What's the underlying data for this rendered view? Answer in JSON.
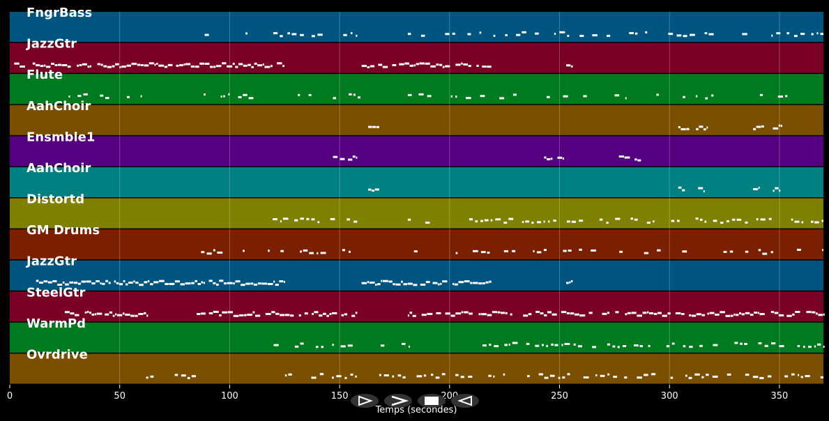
{
  "chart_data": {
    "type": "piano-roll",
    "xlabel": "Temps (secondes)",
    "xlim": [
      0,
      370
    ],
    "x_ticks": [
      0,
      50,
      100,
      150,
      200,
      250,
      300,
      350
    ],
    "grid": true,
    "tracks": [
      {
        "name": "FngrBass",
        "color": "#005580",
        "density": 0.55,
        "segments": [
          [
            85,
            158
          ],
          [
            181,
            370
          ]
        ]
      },
      {
        "name": "JazzGtr",
        "color": "#7a0026",
        "density": 0.9,
        "segments": [
          [
            2,
            125
          ],
          [
            160,
            219
          ],
          [
            253,
            256
          ]
        ]
      },
      {
        "name": "Flute",
        "color": "#007a1e",
        "density": 0.35,
        "segments": [
          [
            25,
            60
          ],
          [
            85,
            160
          ],
          [
            181,
            320
          ],
          [
            338,
            355
          ]
        ]
      },
      {
        "name": "AahChoir",
        "color": "#7a5000",
        "density": 0.9,
        "segments": [
          [
            163,
            168
          ],
          [
            304,
            309
          ],
          [
            312,
            317
          ],
          [
            338,
            343
          ],
          [
            347,
            351
          ]
        ]
      },
      {
        "name": "Ensmble1",
        "color": "#550080",
        "density": 0.9,
        "segments": [
          [
            147,
            158
          ],
          [
            243,
            252
          ],
          [
            277,
            287
          ]
        ]
      },
      {
        "name": "AahChoir",
        "color": "#008080",
        "density": 0.9,
        "segments": [
          [
            163,
            168
          ],
          [
            304,
            307
          ],
          [
            313,
            316
          ],
          [
            338,
            341
          ],
          [
            347,
            350
          ]
        ]
      },
      {
        "name": "Distortd",
        "color": "#7f7f00",
        "density": 0.7,
        "segments": [
          [
            118,
            158
          ],
          [
            181,
            183
          ],
          [
            189,
            191
          ],
          [
            207,
            214
          ],
          [
            214,
            370
          ]
        ]
      },
      {
        "name": "GM Drums",
        "color": "#7a2000",
        "density": 0.4,
        "segments": [
          [
            87,
            155
          ],
          [
            182,
            370
          ]
        ]
      },
      {
        "name": "JazzGtr",
        "color": "#005580",
        "density": 0.9,
        "segments": [
          [
            12,
            125
          ],
          [
            160,
            219
          ],
          [
            253,
            256
          ]
        ]
      },
      {
        "name": "SteelGtr",
        "color": "#7a0026",
        "density": 0.85,
        "segments": [
          [
            25,
            63
          ],
          [
            85,
            158
          ],
          [
            181,
            370
          ]
        ]
      },
      {
        "name": "WarmPd",
        "color": "#007a1e",
        "density": 0.6,
        "segments": [
          [
            120,
            157
          ],
          [
            163,
            182
          ],
          [
            215,
            370
          ]
        ]
      },
      {
        "name": "Ovrdrive",
        "color": "#7a5000",
        "density": 0.6,
        "segments": [
          [
            62,
            85
          ],
          [
            120,
            158
          ],
          [
            168,
            180
          ],
          [
            185,
            370
          ]
        ]
      }
    ]
  },
  "controls": {
    "play_label": "▶",
    "forward_label": "⏩",
    "stop_label": "■",
    "back_label": "◀"
  }
}
